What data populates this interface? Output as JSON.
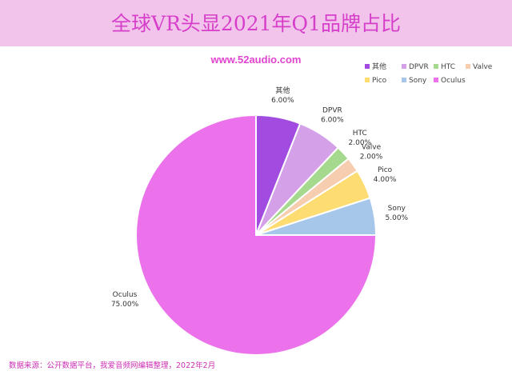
{
  "title": "全球VR头显2021年Q1品牌占比",
  "website": "www.52audio.com",
  "source_note": "数据来源：公开数据平台，我爱音频网编辑整理，2022年2月",
  "chart_data": {
    "type": "pie",
    "title": "全球VR头显2021年Q1品牌占比",
    "legend_position": "top-right",
    "labels": [
      "其他",
      "DPVR",
      "HTC",
      "Valve",
      "Pico",
      "Sony",
      "Oculus"
    ],
    "values": [
      6.0,
      6.0,
      2.0,
      2.0,
      4.0,
      5.0,
      75.0
    ],
    "value_labels": [
      "6.00%",
      "6.00%",
      "2.00%",
      "2.00%",
      "4.00%",
      "5.00%",
      "75.00%"
    ],
    "colors": [
      "#a24be0",
      "#d4a0e8",
      "#a5d98e",
      "#f7cdb0",
      "#fddc72",
      "#a6c6ea",
      "#ec72ec"
    ]
  }
}
